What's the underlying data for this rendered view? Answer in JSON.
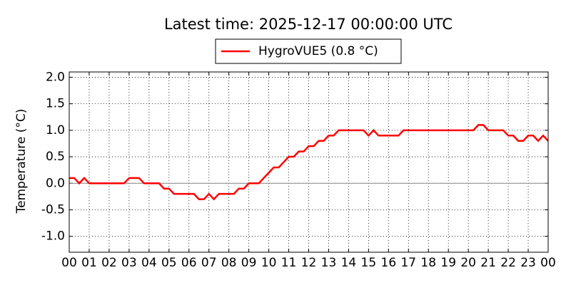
{
  "chart_data": {
    "type": "line",
    "title": "Latest time: 2025-12-17 00:00:00 UTC",
    "y_label": "Temperature (°C)",
    "legend": "upper center",
    "grid": true,
    "hline": 0,
    "xlim": [
      0,
      24
    ],
    "ylim": [
      -1.3,
      2.1
    ],
    "xticks": [
      {
        "value": 0,
        "label": "00"
      },
      {
        "value": 1,
        "label": "01"
      },
      {
        "value": 2,
        "label": "02"
      },
      {
        "value": 3,
        "label": "03"
      },
      {
        "value": 4,
        "label": "04"
      },
      {
        "value": 5,
        "label": "05"
      },
      {
        "value": 6,
        "label": "06"
      },
      {
        "value": 7,
        "label": "07"
      },
      {
        "value": 8,
        "label": "08"
      },
      {
        "value": 9,
        "label": "09"
      },
      {
        "value": 10,
        "label": "10"
      },
      {
        "value": 11,
        "label": "11"
      },
      {
        "value": 12,
        "label": "12"
      },
      {
        "value": 13,
        "label": "13"
      },
      {
        "value": 14,
        "label": "14"
      },
      {
        "value": 15,
        "label": "15"
      },
      {
        "value": 16,
        "label": "16"
      },
      {
        "value": 17,
        "label": "17"
      },
      {
        "value": 18,
        "label": "18"
      },
      {
        "value": 19,
        "label": "19"
      },
      {
        "value": 20,
        "label": "20"
      },
      {
        "value": 21,
        "label": "21"
      },
      {
        "value": 22,
        "label": "22"
      },
      {
        "value": 23,
        "label": "23"
      },
      {
        "value": 24,
        "label": "00"
      }
    ],
    "yticks": [
      {
        "value": -1.0,
        "label": "-1.0"
      },
      -0.5,
      {
        "value": 0,
        "label": "0.0"
      },
      0.5,
      {
        "value": 1.0,
        "label": "1.0"
      },
      1.5,
      {
        "value": 2.0,
        "label": "2.0"
      }
    ],
    "x": [
      0,
      0.25,
      0.5,
      0.75,
      1,
      1.25,
      1.5,
      1.75,
      2,
      2.25,
      2.5,
      2.75,
      3,
      3.25,
      3.5,
      3.75,
      4,
      4.25,
      4.5,
      4.75,
      5,
      5.25,
      5.5,
      5.75,
      6,
      6.25,
      6.5,
      6.75,
      7,
      7.25,
      7.5,
      7.75,
      8,
      8.25,
      8.5,
      8.75,
      9,
      9.25,
      9.5,
      9.75,
      10,
      10.25,
      10.5,
      10.75,
      11,
      11.25,
      11.5,
      11.75,
      12,
      12.25,
      12.5,
      12.75,
      13,
      13.25,
      13.5,
      13.75,
      14,
      14.25,
      14.5,
      14.75,
      15,
      15.25,
      15.5,
      15.75,
      16,
      16.25,
      16.5,
      16.75,
      17,
      17.25,
      17.5,
      17.75,
      18,
      18.25,
      18.5,
      18.75,
      19,
      19.25,
      19.5,
      19.75,
      20,
      20.25,
      20.5,
      20.75,
      21,
      21.25,
      21.5,
      21.75,
      22,
      22.25,
      22.5,
      22.75,
      23,
      23.25,
      23.5,
      23.75,
      24
    ],
    "series": [
      {
        "name": "HygroVUE5 (0.8 °C)",
        "color": "#ff0000",
        "values": [
          0.1,
          0.1,
          0.0,
          0.1,
          0.0,
          0.0,
          0.0,
          0.0,
          0.0,
          0.0,
          0.0,
          0.0,
          0.1,
          0.1,
          0.1,
          0.0,
          0.0,
          0.0,
          0.0,
          -0.1,
          -0.1,
          -0.2,
          -0.2,
          -0.2,
          -0.2,
          -0.2,
          -0.3,
          -0.3,
          -0.2,
          -0.3,
          -0.2,
          -0.2,
          -0.2,
          -0.2,
          -0.1,
          -0.1,
          0.0,
          0.0,
          0.0,
          0.1,
          0.2,
          0.3,
          0.3,
          0.4,
          0.5,
          0.5,
          0.6,
          0.6,
          0.7,
          0.7,
          0.8,
          0.8,
          0.9,
          0.9,
          1.0,
          1.0,
          1.0,
          1.0,
          1.0,
          1.0,
          0.9,
          1.0,
          0.9,
          0.9,
          0.9,
          0.9,
          0.9,
          1.0,
          1.0,
          1.0,
          1.0,
          1.0,
          1.0,
          1.0,
          1.0,
          1.0,
          1.0,
          1.0,
          1.0,
          1.0,
          1.0,
          1.0,
          1.1,
          1.1,
          1.0,
          1.0,
          1.0,
          1.0,
          0.9,
          0.9,
          0.8,
          0.8,
          0.9,
          0.9,
          0.8,
          0.9,
          0.8
        ]
      }
    ]
  }
}
